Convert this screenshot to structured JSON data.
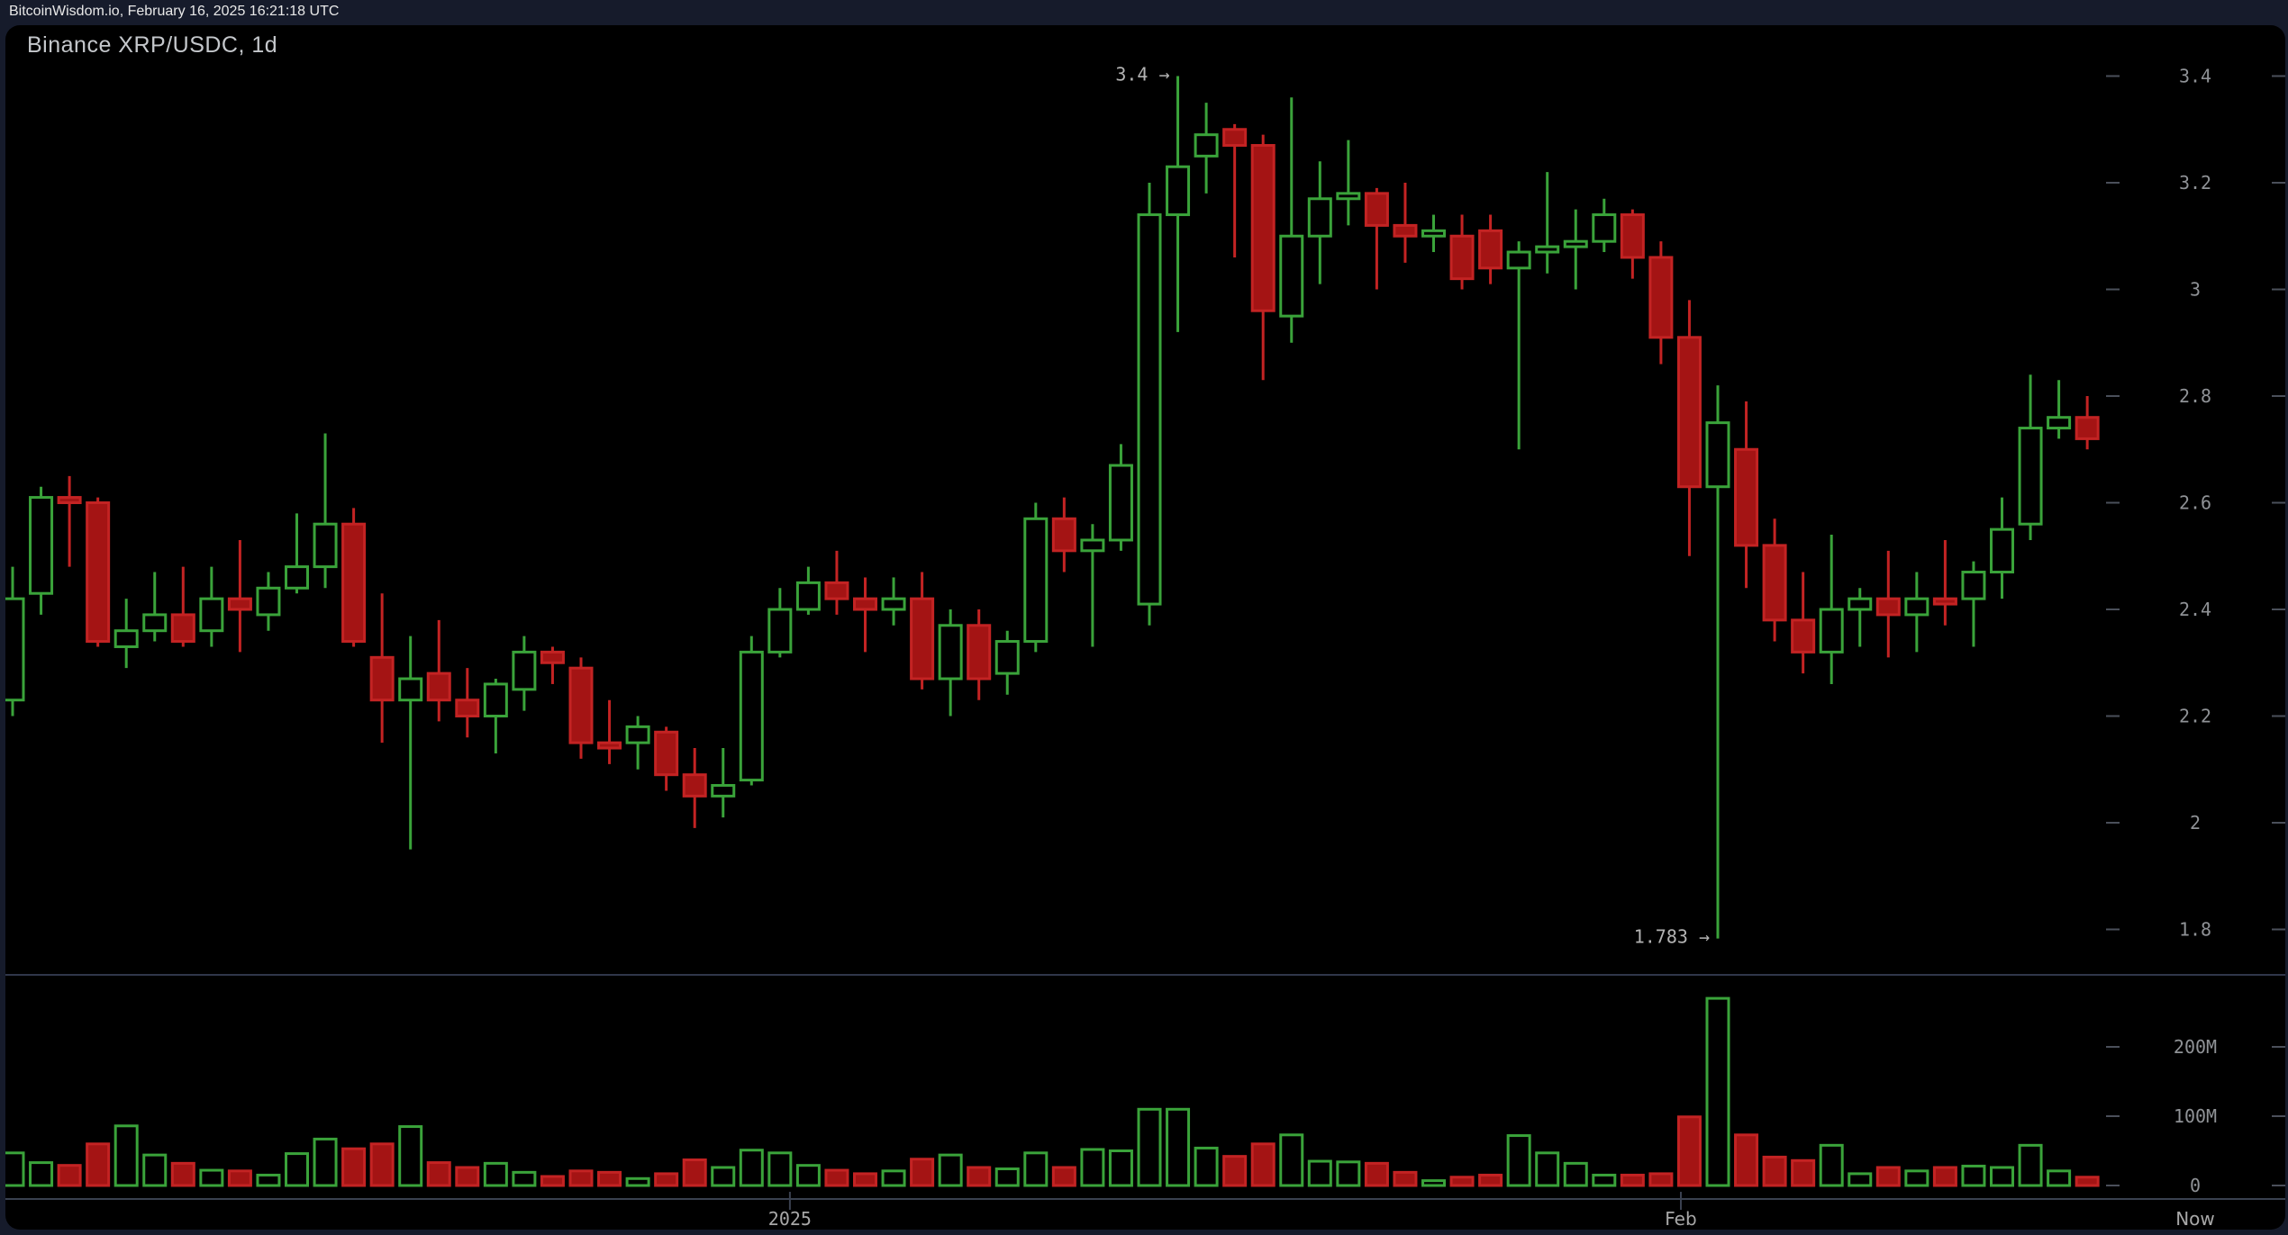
{
  "header": {
    "text": "BitcoinWisdom.io, February 16, 2025 16:21:18 UTC"
  },
  "chart": {
    "title": "Binance XRP/USDC, 1d"
  },
  "colors": {
    "frame_background": "#161b2b",
    "chart_background": "#000000",
    "up_stroke": "#3aa33a",
    "up_fill": "#000000",
    "down_fill": "#a41414",
    "down_stroke": "#c32323",
    "axis_text": "#8f9296",
    "date_text": "#a8a8a8",
    "annotation_text": "#b3b3b3",
    "tick_dash": "#4a4f5a",
    "axis_line": "#3a4150",
    "divider_line": "#30364a",
    "header_text": "#e8e8e8",
    "title_text": "#c4c7cb"
  },
  "price_axis": {
    "side": "right",
    "ticks": [
      {
        "label": "3.4",
        "value": 3.4
      },
      {
        "label": "3.2",
        "value": 3.2
      },
      {
        "label": "3",
        "value": 3.0
      },
      {
        "label": "2.8",
        "value": 2.8
      },
      {
        "label": "2.6",
        "value": 2.6
      },
      {
        "label": "2.4",
        "value": 2.4
      },
      {
        "label": "2.2",
        "value": 2.2
      },
      {
        "label": "2",
        "value": 2.0
      },
      {
        "label": "1.8",
        "value": 1.8
      }
    ]
  },
  "volume_axis": {
    "side": "right",
    "unit": "M",
    "ticks": [
      {
        "label": "200M",
        "value": 200
      },
      {
        "label": "100M",
        "value": 100
      },
      {
        "label": "0",
        "value": 0
      }
    ]
  },
  "time_axis": {
    "labels": [
      {
        "text": "2025",
        "candle_index": 27.35,
        "tick": true
      },
      {
        "text": "Feb",
        "candle_index": 58.7,
        "tick": true
      },
      {
        "text": "Now",
        "candle_index": 76.8,
        "tick": false
      }
    ]
  },
  "annotations": [
    {
      "text": "3.4 →",
      "attach": "high",
      "candle_index": 41
    },
    {
      "text": "1.783 →",
      "attach": "low",
      "candle_index": 60
    }
  ],
  "chart_data": {
    "type": "candlestick",
    "title": "Binance XRP/USDC, 1d",
    "exchange": "Binance",
    "pair": "XRP/USDC",
    "interval": "1d",
    "legend_position": "none",
    "grid": false,
    "price_axis_range": [
      1.72,
      3.47
    ],
    "volume_unit": "millions",
    "marked_high": 3.4,
    "marked_low": 1.783,
    "columns": [
      "open",
      "high",
      "low",
      "close",
      "volume_M"
    ],
    "candles": [
      [
        2.23,
        2.48,
        2.2,
        2.42,
        47
      ],
      [
        2.43,
        2.63,
        2.39,
        2.61,
        33
      ],
      [
        2.61,
        2.65,
        2.48,
        2.6,
        29
      ],
      [
        2.6,
        2.61,
        2.33,
        2.34,
        60
      ],
      [
        2.33,
        2.42,
        2.29,
        2.36,
        86
      ],
      [
        2.36,
        2.47,
        2.34,
        2.39,
        44
      ],
      [
        2.39,
        2.48,
        2.33,
        2.34,
        32
      ],
      [
        2.36,
        2.48,
        2.33,
        2.42,
        22
      ],
      [
        2.42,
        2.53,
        2.32,
        2.4,
        21
      ],
      [
        2.39,
        2.47,
        2.36,
        2.44,
        15
      ],
      [
        2.44,
        2.58,
        2.43,
        2.48,
        46
      ],
      [
        2.48,
        2.73,
        2.44,
        2.56,
        67
      ],
      [
        2.56,
        2.59,
        2.33,
        2.34,
        53
      ],
      [
        2.31,
        2.43,
        2.15,
        2.23,
        60
      ],
      [
        2.23,
        2.35,
        1.95,
        2.27,
        85
      ],
      [
        2.28,
        2.38,
        2.19,
        2.23,
        33
      ],
      [
        2.23,
        2.29,
        2.16,
        2.2,
        26
      ],
      [
        2.2,
        2.27,
        2.13,
        2.26,
        32
      ],
      [
        2.25,
        2.35,
        2.21,
        2.32,
        19
      ],
      [
        2.32,
        2.33,
        2.26,
        2.3,
        13
      ],
      [
        2.29,
        2.31,
        2.12,
        2.15,
        21
      ],
      [
        2.15,
        2.23,
        2.11,
        2.14,
        19
      ],
      [
        2.15,
        2.2,
        2.1,
        2.18,
        10
      ],
      [
        2.17,
        2.18,
        2.06,
        2.09,
        17
      ],
      [
        2.09,
        2.14,
        1.99,
        2.05,
        37
      ],
      [
        2.05,
        2.14,
        2.01,
        2.07,
        26
      ],
      [
        2.08,
        2.35,
        2.07,
        2.32,
        51
      ],
      [
        2.32,
        2.44,
        2.31,
        2.4,
        47
      ],
      [
        2.4,
        2.48,
        2.39,
        2.45,
        29
      ],
      [
        2.45,
        2.51,
        2.39,
        2.42,
        22
      ],
      [
        2.42,
        2.46,
        2.32,
        2.4,
        17
      ],
      [
        2.4,
        2.46,
        2.37,
        2.42,
        21
      ],
      [
        2.42,
        2.47,
        2.25,
        2.27,
        38
      ],
      [
        2.27,
        2.4,
        2.2,
        2.37,
        44
      ],
      [
        2.37,
        2.4,
        2.23,
        2.27,
        26
      ],
      [
        2.28,
        2.36,
        2.24,
        2.34,
        24
      ],
      [
        2.34,
        2.6,
        2.32,
        2.57,
        47
      ],
      [
        2.57,
        2.61,
        2.47,
        2.51,
        26
      ],
      [
        2.51,
        2.56,
        2.33,
        2.53,
        52
      ],
      [
        2.53,
        2.71,
        2.51,
        2.67,
        50
      ],
      [
        2.41,
        3.2,
        2.37,
        3.14,
        110
      ],
      [
        3.14,
        3.4,
        2.92,
        3.23,
        110
      ],
      [
        3.25,
        3.35,
        3.18,
        3.29,
        54
      ],
      [
        3.3,
        3.31,
        3.06,
        3.27,
        42
      ],
      [
        3.27,
        3.29,
        2.83,
        2.96,
        60
      ],
      [
        2.95,
        3.36,
        2.9,
        3.1,
        73
      ],
      [
        3.1,
        3.24,
        3.01,
        3.17,
        35
      ],
      [
        3.17,
        3.28,
        3.12,
        3.18,
        34
      ],
      [
        3.18,
        3.19,
        3.0,
        3.12,
        32
      ],
      [
        3.12,
        3.2,
        3.05,
        3.1,
        19
      ],
      [
        3.1,
        3.14,
        3.07,
        3.11,
        7
      ],
      [
        3.1,
        3.14,
        3.0,
        3.02,
        12
      ],
      [
        3.11,
        3.14,
        3.01,
        3.04,
        15
      ],
      [
        3.04,
        3.09,
        2.7,
        3.07,
        72
      ],
      [
        3.07,
        3.22,
        3.03,
        3.08,
        47
      ],
      [
        3.08,
        3.15,
        3.0,
        3.09,
        32
      ],
      [
        3.09,
        3.17,
        3.07,
        3.14,
        15
      ],
      [
        3.14,
        3.15,
        3.02,
        3.06,
        15
      ],
      [
        3.06,
        3.09,
        2.86,
        2.91,
        17
      ],
      [
        2.91,
        2.98,
        2.5,
        2.63,
        99
      ],
      [
        2.63,
        2.82,
        1.783,
        2.75,
        270
      ],
      [
        2.7,
        2.79,
        2.44,
        2.52,
        73
      ],
      [
        2.52,
        2.57,
        2.34,
        2.38,
        41
      ],
      [
        2.38,
        2.47,
        2.28,
        2.32,
        36
      ],
      [
        2.32,
        2.54,
        2.26,
        2.4,
        58
      ],
      [
        2.4,
        2.44,
        2.33,
        2.42,
        17
      ],
      [
        2.42,
        2.51,
        2.31,
        2.39,
        26
      ],
      [
        2.39,
        2.47,
        2.32,
        2.42,
        21
      ],
      [
        2.42,
        2.53,
        2.37,
        2.41,
        26
      ],
      [
        2.42,
        2.49,
        2.33,
        2.47,
        28
      ],
      [
        2.47,
        2.61,
        2.42,
        2.55,
        26
      ],
      [
        2.56,
        2.84,
        2.53,
        2.74,
        58
      ],
      [
        2.74,
        2.83,
        2.72,
        2.76,
        21
      ],
      [
        2.76,
        2.8,
        2.7,
        2.72,
        12
      ]
    ]
  }
}
